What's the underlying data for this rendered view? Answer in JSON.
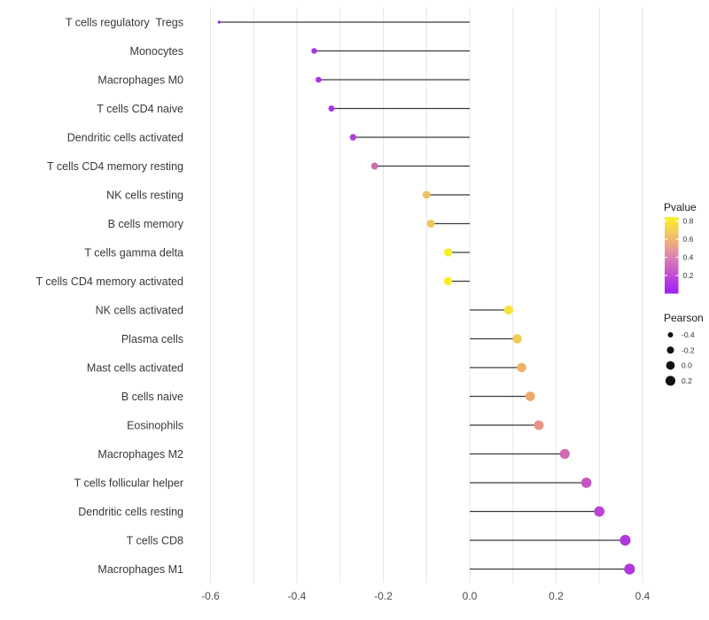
{
  "chart_data": {
    "type": "scatter",
    "variant": "lollipop",
    "orientation": "horizontal",
    "title": "",
    "xlabel": "",
    "ylabel": "",
    "xlim": [
      -0.65,
      0.427
    ],
    "x_ticks": [
      -0.6,
      -0.4,
      -0.2,
      0.0,
      0.2,
      0.4
    ],
    "x_tick_labels": [
      "-0.6",
      "-0.4",
      "-0.2",
      "0.0",
      "0.2",
      "0.4"
    ],
    "grid": "vertical-gridlines-only",
    "baseline_x": 0,
    "rows": [
      {
        "label": "T cells regulatory  Tregs",
        "pearson": -0.58,
        "pvalue": 0.02,
        "color": "#9226dd"
      },
      {
        "label": "Monocytes",
        "pearson": -0.36,
        "pvalue": 0.08,
        "color": "#a934e8"
      },
      {
        "label": "Macrophages M0",
        "pearson": -0.35,
        "pvalue": 0.08,
        "color": "#a934e8"
      },
      {
        "label": "T cells CD4 naive",
        "pearson": -0.32,
        "pvalue": 0.1,
        "color": "#aa36e6"
      },
      {
        "label": "Dendritic cells activated",
        "pearson": -0.27,
        "pvalue": 0.15,
        "color": "#b240dd"
      },
      {
        "label": "T cells CD4 memory resting",
        "pearson": -0.22,
        "pvalue": 0.35,
        "color": "#d069ae"
      },
      {
        "label": "NK cells resting",
        "pearson": -0.1,
        "pvalue": 0.6,
        "color": "#eec25f"
      },
      {
        "label": "B cells memory",
        "pearson": -0.09,
        "pvalue": 0.62,
        "color": "#f0c75c"
      },
      {
        "label": "T cells gamma delta",
        "pearson": -0.05,
        "pvalue": 0.84,
        "color": "#f9ee24"
      },
      {
        "label": "T cells CD4 memory activated",
        "pearson": -0.05,
        "pvalue": 0.84,
        "color": "#f9ee24"
      },
      {
        "label": "NK cells activated",
        "pearson": 0.09,
        "pvalue": 0.77,
        "color": "#f7e43a"
      },
      {
        "label": "Plasma cells",
        "pearson": 0.11,
        "pvalue": 0.65,
        "color": "#f2cd55"
      },
      {
        "label": "Mast cells activated",
        "pearson": 0.12,
        "pvalue": 0.58,
        "color": "#eeb166"
      },
      {
        "label": "B cells naive",
        "pearson": 0.14,
        "pvalue": 0.54,
        "color": "#eca76d"
      },
      {
        "label": "Eosinophils",
        "pearson": 0.16,
        "pvalue": 0.46,
        "color": "#e89486"
      },
      {
        "label": "Macrophages M2",
        "pearson": 0.22,
        "pvalue": 0.33,
        "color": "#ce6ab3"
      },
      {
        "label": "T cells follicular helper",
        "pearson": 0.27,
        "pvalue": 0.27,
        "color": "#c556c6"
      },
      {
        "label": "Dendritic cells resting",
        "pearson": 0.3,
        "pvalue": 0.2,
        "color": "#bc44d2"
      },
      {
        "label": "T cells CD8",
        "pearson": 0.36,
        "pvalue": 0.11,
        "color": "#b138dc"
      },
      {
        "label": "Macrophages M1",
        "pearson": 0.37,
        "pvalue": 0.11,
        "color": "#b138dc"
      }
    ],
    "legends": {
      "pvalue": {
        "title": "Pvalue",
        "tick_values": [
          0.8,
          0.6,
          0.4,
          0.2
        ],
        "tick_labels": [
          "0.8",
          "0.6",
          "0.4",
          "0.2"
        ],
        "range_top": 0.845,
        "range_bottom": 0.0,
        "gradient_top_to_bottom": [
          "#fbf321",
          "#f5d058",
          "#efae79",
          "#dd87ab",
          "#cd62c6",
          "#b53be0",
          "#a11ff5"
        ]
      },
      "pearson": {
        "title": "Pearson",
        "entries": [
          {
            "label": "-0.4",
            "value": -0.4
          },
          {
            "label": "-0.2",
            "value": -0.2
          },
          {
            "label": "0.0",
            "value": 0.0
          },
          {
            "label": "0.2",
            "value": 0.2
          }
        ],
        "dot_color": "#111111"
      }
    },
    "colors": {
      "background": "#ffffff",
      "grid": "#e7e7e7",
      "stem": "#3a3a3a",
      "axis_text": "#4a4a4a",
      "label_text": "#383838"
    }
  }
}
